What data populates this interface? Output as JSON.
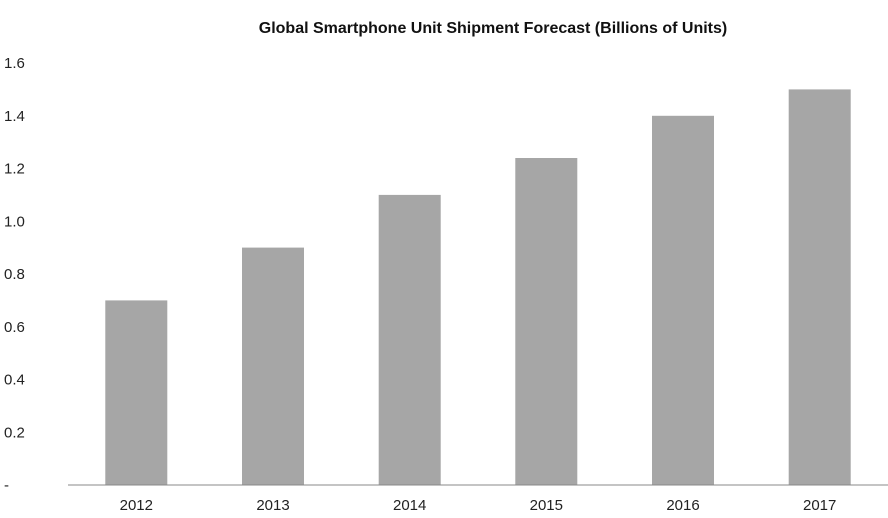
{
  "chart_data": {
    "type": "bar",
    "title": "Global Smartphone Unit Shipment Forecast (Billions of Units)",
    "xlabel": "",
    "ylabel": "",
    "categories": [
      "2012",
      "2013",
      "2014",
      "2015",
      "2016",
      "2017"
    ],
    "values": [
      0.7,
      0.9,
      1.1,
      1.24,
      1.4,
      1.5
    ],
    "ylim": [
      0,
      1.6
    ],
    "yticks": [
      0,
      0.2,
      0.4,
      0.6,
      0.8,
      1.0,
      1.2,
      1.4,
      1.6
    ],
    "ytick_labels": [
      "-",
      "0.2",
      "0.4",
      "0.6",
      "0.8",
      "1.0",
      "1.2",
      "1.4",
      "1.6"
    ],
    "grid": false,
    "legend": "none",
    "bar_color": "#a6a6a6",
    "axis_color": "#888888"
  }
}
